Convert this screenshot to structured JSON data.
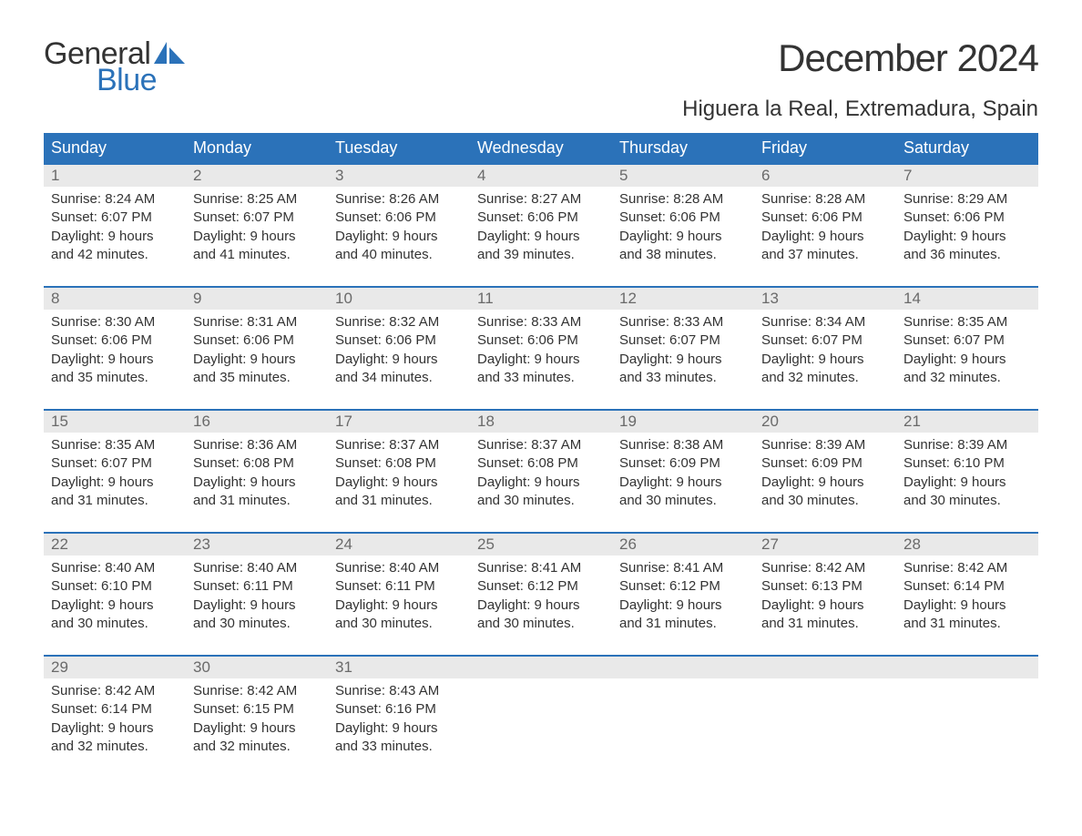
{
  "logo": {
    "word1": "General",
    "word2": "Blue",
    "color_text": "#333333",
    "color_accent": "#2b72b9"
  },
  "title": "December 2024",
  "location": "Higuera la Real, Extremadura, Spain",
  "weekdays": [
    "Sunday",
    "Monday",
    "Tuesday",
    "Wednesday",
    "Thursday",
    "Friday",
    "Saturday"
  ],
  "colors": {
    "header_bg": "#2b72b9",
    "header_text": "#ffffff",
    "daynum_bg": "#e9e9e9",
    "daynum_text": "#6a6a6a",
    "body_text": "#333333",
    "rule": "#2b72b9",
    "background": "#ffffff"
  },
  "weeks": [
    [
      {
        "n": "1",
        "sunrise": "Sunrise: 8:24 AM",
        "sunset": "Sunset: 6:07 PM",
        "d1": "Daylight: 9 hours",
        "d2": "and 42 minutes."
      },
      {
        "n": "2",
        "sunrise": "Sunrise: 8:25 AM",
        "sunset": "Sunset: 6:07 PM",
        "d1": "Daylight: 9 hours",
        "d2": "and 41 minutes."
      },
      {
        "n": "3",
        "sunrise": "Sunrise: 8:26 AM",
        "sunset": "Sunset: 6:06 PM",
        "d1": "Daylight: 9 hours",
        "d2": "and 40 minutes."
      },
      {
        "n": "4",
        "sunrise": "Sunrise: 8:27 AM",
        "sunset": "Sunset: 6:06 PM",
        "d1": "Daylight: 9 hours",
        "d2": "and 39 minutes."
      },
      {
        "n": "5",
        "sunrise": "Sunrise: 8:28 AM",
        "sunset": "Sunset: 6:06 PM",
        "d1": "Daylight: 9 hours",
        "d2": "and 38 minutes."
      },
      {
        "n": "6",
        "sunrise": "Sunrise: 8:28 AM",
        "sunset": "Sunset: 6:06 PM",
        "d1": "Daylight: 9 hours",
        "d2": "and 37 minutes."
      },
      {
        "n": "7",
        "sunrise": "Sunrise: 8:29 AM",
        "sunset": "Sunset: 6:06 PM",
        "d1": "Daylight: 9 hours",
        "d2": "and 36 minutes."
      }
    ],
    [
      {
        "n": "8",
        "sunrise": "Sunrise: 8:30 AM",
        "sunset": "Sunset: 6:06 PM",
        "d1": "Daylight: 9 hours",
        "d2": "and 35 minutes."
      },
      {
        "n": "9",
        "sunrise": "Sunrise: 8:31 AM",
        "sunset": "Sunset: 6:06 PM",
        "d1": "Daylight: 9 hours",
        "d2": "and 35 minutes."
      },
      {
        "n": "10",
        "sunrise": "Sunrise: 8:32 AM",
        "sunset": "Sunset: 6:06 PM",
        "d1": "Daylight: 9 hours",
        "d2": "and 34 minutes."
      },
      {
        "n": "11",
        "sunrise": "Sunrise: 8:33 AM",
        "sunset": "Sunset: 6:06 PM",
        "d1": "Daylight: 9 hours",
        "d2": "and 33 minutes."
      },
      {
        "n": "12",
        "sunrise": "Sunrise: 8:33 AM",
        "sunset": "Sunset: 6:07 PM",
        "d1": "Daylight: 9 hours",
        "d2": "and 33 minutes."
      },
      {
        "n": "13",
        "sunrise": "Sunrise: 8:34 AM",
        "sunset": "Sunset: 6:07 PM",
        "d1": "Daylight: 9 hours",
        "d2": "and 32 minutes."
      },
      {
        "n": "14",
        "sunrise": "Sunrise: 8:35 AM",
        "sunset": "Sunset: 6:07 PM",
        "d1": "Daylight: 9 hours",
        "d2": "and 32 minutes."
      }
    ],
    [
      {
        "n": "15",
        "sunrise": "Sunrise: 8:35 AM",
        "sunset": "Sunset: 6:07 PM",
        "d1": "Daylight: 9 hours",
        "d2": "and 31 minutes."
      },
      {
        "n": "16",
        "sunrise": "Sunrise: 8:36 AM",
        "sunset": "Sunset: 6:08 PM",
        "d1": "Daylight: 9 hours",
        "d2": "and 31 minutes."
      },
      {
        "n": "17",
        "sunrise": "Sunrise: 8:37 AM",
        "sunset": "Sunset: 6:08 PM",
        "d1": "Daylight: 9 hours",
        "d2": "and 31 minutes."
      },
      {
        "n": "18",
        "sunrise": "Sunrise: 8:37 AM",
        "sunset": "Sunset: 6:08 PM",
        "d1": "Daylight: 9 hours",
        "d2": "and 30 minutes."
      },
      {
        "n": "19",
        "sunrise": "Sunrise: 8:38 AM",
        "sunset": "Sunset: 6:09 PM",
        "d1": "Daylight: 9 hours",
        "d2": "and 30 minutes."
      },
      {
        "n": "20",
        "sunrise": "Sunrise: 8:39 AM",
        "sunset": "Sunset: 6:09 PM",
        "d1": "Daylight: 9 hours",
        "d2": "and 30 minutes."
      },
      {
        "n": "21",
        "sunrise": "Sunrise: 8:39 AM",
        "sunset": "Sunset: 6:10 PM",
        "d1": "Daylight: 9 hours",
        "d2": "and 30 minutes."
      }
    ],
    [
      {
        "n": "22",
        "sunrise": "Sunrise: 8:40 AM",
        "sunset": "Sunset: 6:10 PM",
        "d1": "Daylight: 9 hours",
        "d2": "and 30 minutes."
      },
      {
        "n": "23",
        "sunrise": "Sunrise: 8:40 AM",
        "sunset": "Sunset: 6:11 PM",
        "d1": "Daylight: 9 hours",
        "d2": "and 30 minutes."
      },
      {
        "n": "24",
        "sunrise": "Sunrise: 8:40 AM",
        "sunset": "Sunset: 6:11 PM",
        "d1": "Daylight: 9 hours",
        "d2": "and 30 minutes."
      },
      {
        "n": "25",
        "sunrise": "Sunrise: 8:41 AM",
        "sunset": "Sunset: 6:12 PM",
        "d1": "Daylight: 9 hours",
        "d2": "and 30 minutes."
      },
      {
        "n": "26",
        "sunrise": "Sunrise: 8:41 AM",
        "sunset": "Sunset: 6:12 PM",
        "d1": "Daylight: 9 hours",
        "d2": "and 31 minutes."
      },
      {
        "n": "27",
        "sunrise": "Sunrise: 8:42 AM",
        "sunset": "Sunset: 6:13 PM",
        "d1": "Daylight: 9 hours",
        "d2": "and 31 minutes."
      },
      {
        "n": "28",
        "sunrise": "Sunrise: 8:42 AM",
        "sunset": "Sunset: 6:14 PM",
        "d1": "Daylight: 9 hours",
        "d2": "and 31 minutes."
      }
    ],
    [
      {
        "n": "29",
        "sunrise": "Sunrise: 8:42 AM",
        "sunset": "Sunset: 6:14 PM",
        "d1": "Daylight: 9 hours",
        "d2": "and 32 minutes."
      },
      {
        "n": "30",
        "sunrise": "Sunrise: 8:42 AM",
        "sunset": "Sunset: 6:15 PM",
        "d1": "Daylight: 9 hours",
        "d2": "and 32 minutes."
      },
      {
        "n": "31",
        "sunrise": "Sunrise: 8:43 AM",
        "sunset": "Sunset: 6:16 PM",
        "d1": "Daylight: 9 hours",
        "d2": "and 33 minutes."
      },
      null,
      null,
      null,
      null
    ]
  ]
}
